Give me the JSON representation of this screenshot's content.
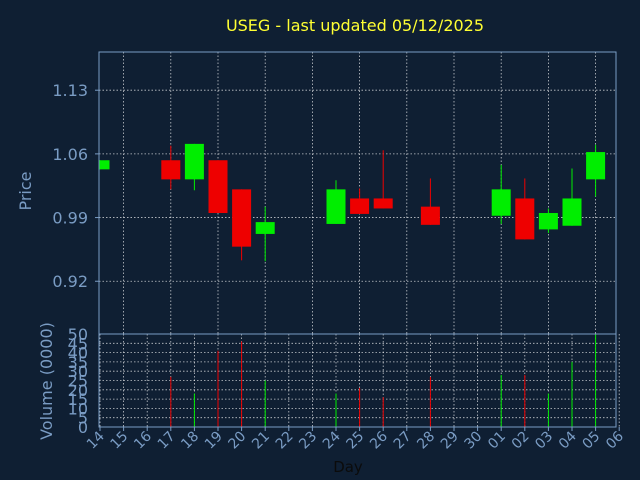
{
  "chart_data": {
    "type": "candlestick",
    "title": "USEG - last updated 05/12/2025",
    "xlabel": "Day",
    "ylabel_price": "Price",
    "ylabel_volume": "Volume (0000)",
    "price_ylim": [
      0.862,
      1.172
    ],
    "price_ticks": [
      "1.13",
      "1.06",
      "0.99",
      "0.92"
    ],
    "volume_ylim": [
      0,
      50
    ],
    "volume_ticks": [
      "50",
      "45",
      "40",
      "35",
      "30",
      "25",
      "20",
      "15",
      "10",
      "5",
      "0"
    ],
    "x_ticks": [
      "14",
      "15",
      "16",
      "17",
      "18",
      "19",
      "20",
      "21",
      "22",
      "23",
      "24",
      "25",
      "26",
      "27",
      "28",
      "29",
      "30",
      "01",
      "02",
      "03",
      "04",
      "05",
      "06"
    ],
    "grid": true,
    "colors": {
      "background": "#0f1f33",
      "up": "#00ee00",
      "down": "#ee0000",
      "title": "#ffff33",
      "axis_text": "#7a9cc4",
      "grid": "#ffffff"
    },
    "candles": [
      {
        "x": "14",
        "open": 1.043,
        "close": 1.053,
        "high": 1.053,
        "low": 1.043,
        "volume": 0
      },
      {
        "x": "17",
        "open": 1.053,
        "close": 1.032,
        "high": 1.069,
        "low": 1.021,
        "volume": 27
      },
      {
        "x": "18",
        "open": 1.032,
        "close": 1.071,
        "high": 1.071,
        "low": 1.02,
        "volume": 18
      },
      {
        "x": "19",
        "open": 1.053,
        "close": 0.995,
        "high": 1.053,
        "low": 0.995,
        "volume": 41
      },
      {
        "x": "20",
        "open": 1.021,
        "close": 0.958,
        "high": 1.021,
        "low": 0.943,
        "volume": 46
      },
      {
        "x": "21",
        "open": 0.972,
        "close": 0.985,
        "high": 1.002,
        "low": 0.942,
        "volume": 25
      },
      {
        "x": "24",
        "open": 0.983,
        "close": 1.021,
        "high": 1.031,
        "low": 0.983,
        "volume": 18
      },
      {
        "x": "25",
        "open": 1.011,
        "close": 0.994,
        "high": 1.022,
        "low": 0.994,
        "volume": 21
      },
      {
        "x": "26",
        "open": 1.011,
        "close": 1.0,
        "high": 1.064,
        "low": 1.0,
        "volume": 16
      },
      {
        "x": "28",
        "open": 1.002,
        "close": 0.982,
        "high": 1.033,
        "low": 0.982,
        "volume": 27
      },
      {
        "x": "01",
        "open": 0.992,
        "close": 1.021,
        "high": 1.048,
        "low": 0.983,
        "volume": 28
      },
      {
        "x": "02",
        "open": 1.011,
        "close": 0.966,
        "high": 1.033,
        "low": 0.966,
        "volume": 28
      },
      {
        "x": "03",
        "open": 0.977,
        "close": 0.995,
        "high": 1.0,
        "low": 0.973,
        "volume": 18
      },
      {
        "x": "04",
        "open": 0.981,
        "close": 1.011,
        "high": 1.044,
        "low": 0.981,
        "volume": 35
      },
      {
        "x": "05",
        "open": 1.032,
        "close": 1.062,
        "high": 1.07,
        "low": 1.013,
        "volume": 50
      }
    ]
  }
}
